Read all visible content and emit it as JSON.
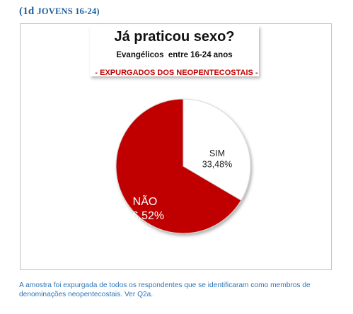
{
  "section": {
    "label_main": "(1d ",
    "label_small": "JOVENS 16-24)"
  },
  "chart_data": {
    "type": "pie",
    "title": "Já praticou sexo?",
    "subtitle": "Evangélicos  entre 16-24 anos",
    "note": "- EXPURGADOS DOS NEOPENTECOSTAIS -",
    "slices": [
      {
        "label": "SIM",
        "display_value": "33,48%",
        "value": 33.48,
        "color": "#ffffff",
        "text_color": "#222222"
      },
      {
        "label": "NÃO",
        "display_value": "66,52%",
        "value": 66.52,
        "color": "#c00000",
        "text_color": "#ffffff"
      }
    ]
  },
  "footnote": "A amostra foi expurgada de todos os respondentes que se identificaram como membros de denominações neopentecostais. Ver Q2a."
}
